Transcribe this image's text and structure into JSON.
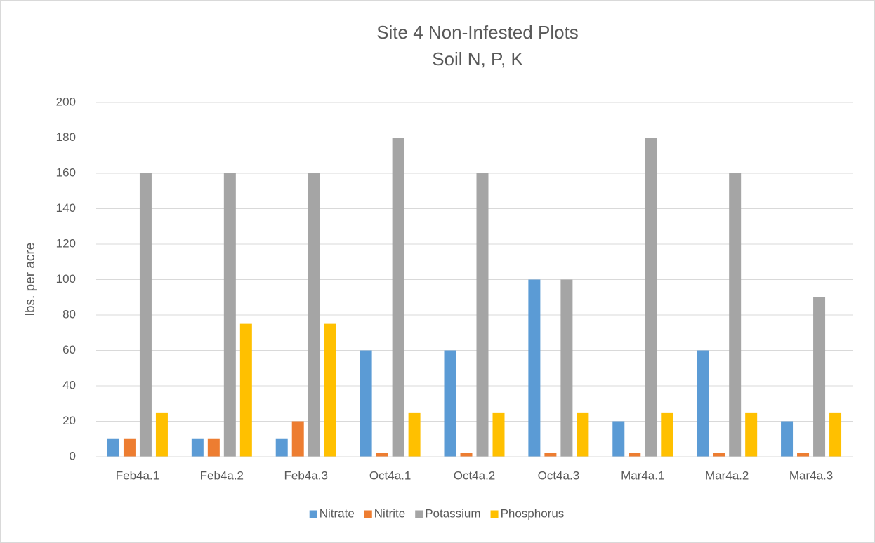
{
  "chart_data": {
    "type": "bar",
    "title": "Site 4 Non-Infested Plots",
    "subtitle": "Soil N, P, K",
    "y_label": "lbs. per acre",
    "categories": [
      "Feb4a.1",
      "Feb4a.2",
      "Feb4a.3",
      "Oct4a.1",
      "Oct4a.2",
      "Oct4a.3",
      "Mar4a.1",
      "Mar4a.2",
      "Mar4a.3"
    ],
    "series": [
      {
        "name": "Nitrate",
        "color": "#5b9bd5",
        "values": [
          10,
          10,
          10,
          60,
          60,
          100,
          20,
          60,
          20
        ]
      },
      {
        "name": "Nitrite",
        "color": "#ed7d31",
        "values": [
          10,
          10,
          20,
          2,
          2,
          2,
          2,
          2,
          2
        ]
      },
      {
        "name": "Potassium",
        "color": "#a5a5a5",
        "values": [
          160,
          160,
          160,
          180,
          160,
          100,
          180,
          160,
          90
        ]
      },
      {
        "name": "Phosphorus",
        "color": "#ffc000",
        "values": [
          25,
          75,
          75,
          25,
          25,
          25,
          25,
          25,
          25
        ]
      }
    ],
    "ylim": [
      0,
      200
    ],
    "yticks": [
      0,
      20,
      40,
      60,
      80,
      100,
      120,
      140,
      160,
      180,
      200
    ],
    "grid": true,
    "legend": "bottom"
  }
}
